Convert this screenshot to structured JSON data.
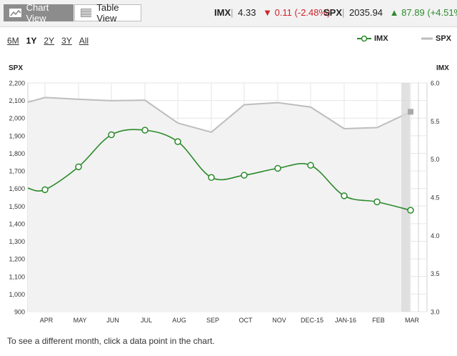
{
  "toolbar": {
    "chart_view_label": "Chart View",
    "table_view_label": "Table View"
  },
  "quotes": {
    "imx": {
      "symbol": "IMX",
      "price": "4.33",
      "change": "0.11",
      "pct": "(-2.48%)",
      "direction": "down"
    },
    "spx": {
      "symbol": "SPX",
      "price": "2035.94",
      "change": "87.89",
      "pct": "(+4.51%)",
      "direction": "up"
    }
  },
  "ranges": [
    "6M",
    "1Y",
    "2Y",
    "3Y",
    "All"
  ],
  "active_range": "1Y",
  "legend": {
    "imx": "IMX",
    "spx": "SPX"
  },
  "axis": {
    "left_title": "SPX",
    "right_title": "IMX"
  },
  "footer_note": "To see a different month, click a data point in the chart.",
  "colors": {
    "imx": "#2a8a2a",
    "spx": "#bdbdbd",
    "down": "#d0222b",
    "up": "#2e8b2e"
  },
  "chart_data": {
    "type": "line",
    "categories": [
      "APR",
      "MAY",
      "JUN",
      "JUL",
      "AUG",
      "SEP",
      "OCT",
      "NOV",
      "DEC-15",
      "JAN-16",
      "FEB",
      "MAR"
    ],
    "series": [
      {
        "name": "IMX",
        "axis": "right",
        "values": [
          4.6,
          4.9,
          5.32,
          5.38,
          5.23,
          4.76,
          4.79,
          4.88,
          4.92,
          4.52,
          4.44,
          4.33
        ],
        "start_value": 4.62
      },
      {
        "name": "SPX",
        "axis": "left",
        "values": [
          2117,
          2107,
          2099,
          2102,
          1972,
          1920,
          2076,
          2088,
          2063,
          1940,
          1946,
          2036
        ],
        "start_value": 2090
      }
    ],
    "y_left": {
      "label": "SPX",
      "min": 900,
      "max": 2200,
      "ticks": [
        "900",
        "1,000",
        "1,100",
        "1,200",
        "1,300",
        "1,400",
        "1,500",
        "1,600",
        "1,700",
        "1,800",
        "1,900",
        "2,000",
        "2,100",
        "2,200"
      ]
    },
    "y_right": {
      "label": "IMX",
      "min": 3.0,
      "max": 6.0,
      "ticks": [
        "3.0",
        "3.5",
        "4.0",
        "4.5",
        "5.0",
        "5.5",
        "6.0"
      ]
    },
    "grid": true,
    "legend_position": "top-right"
  }
}
